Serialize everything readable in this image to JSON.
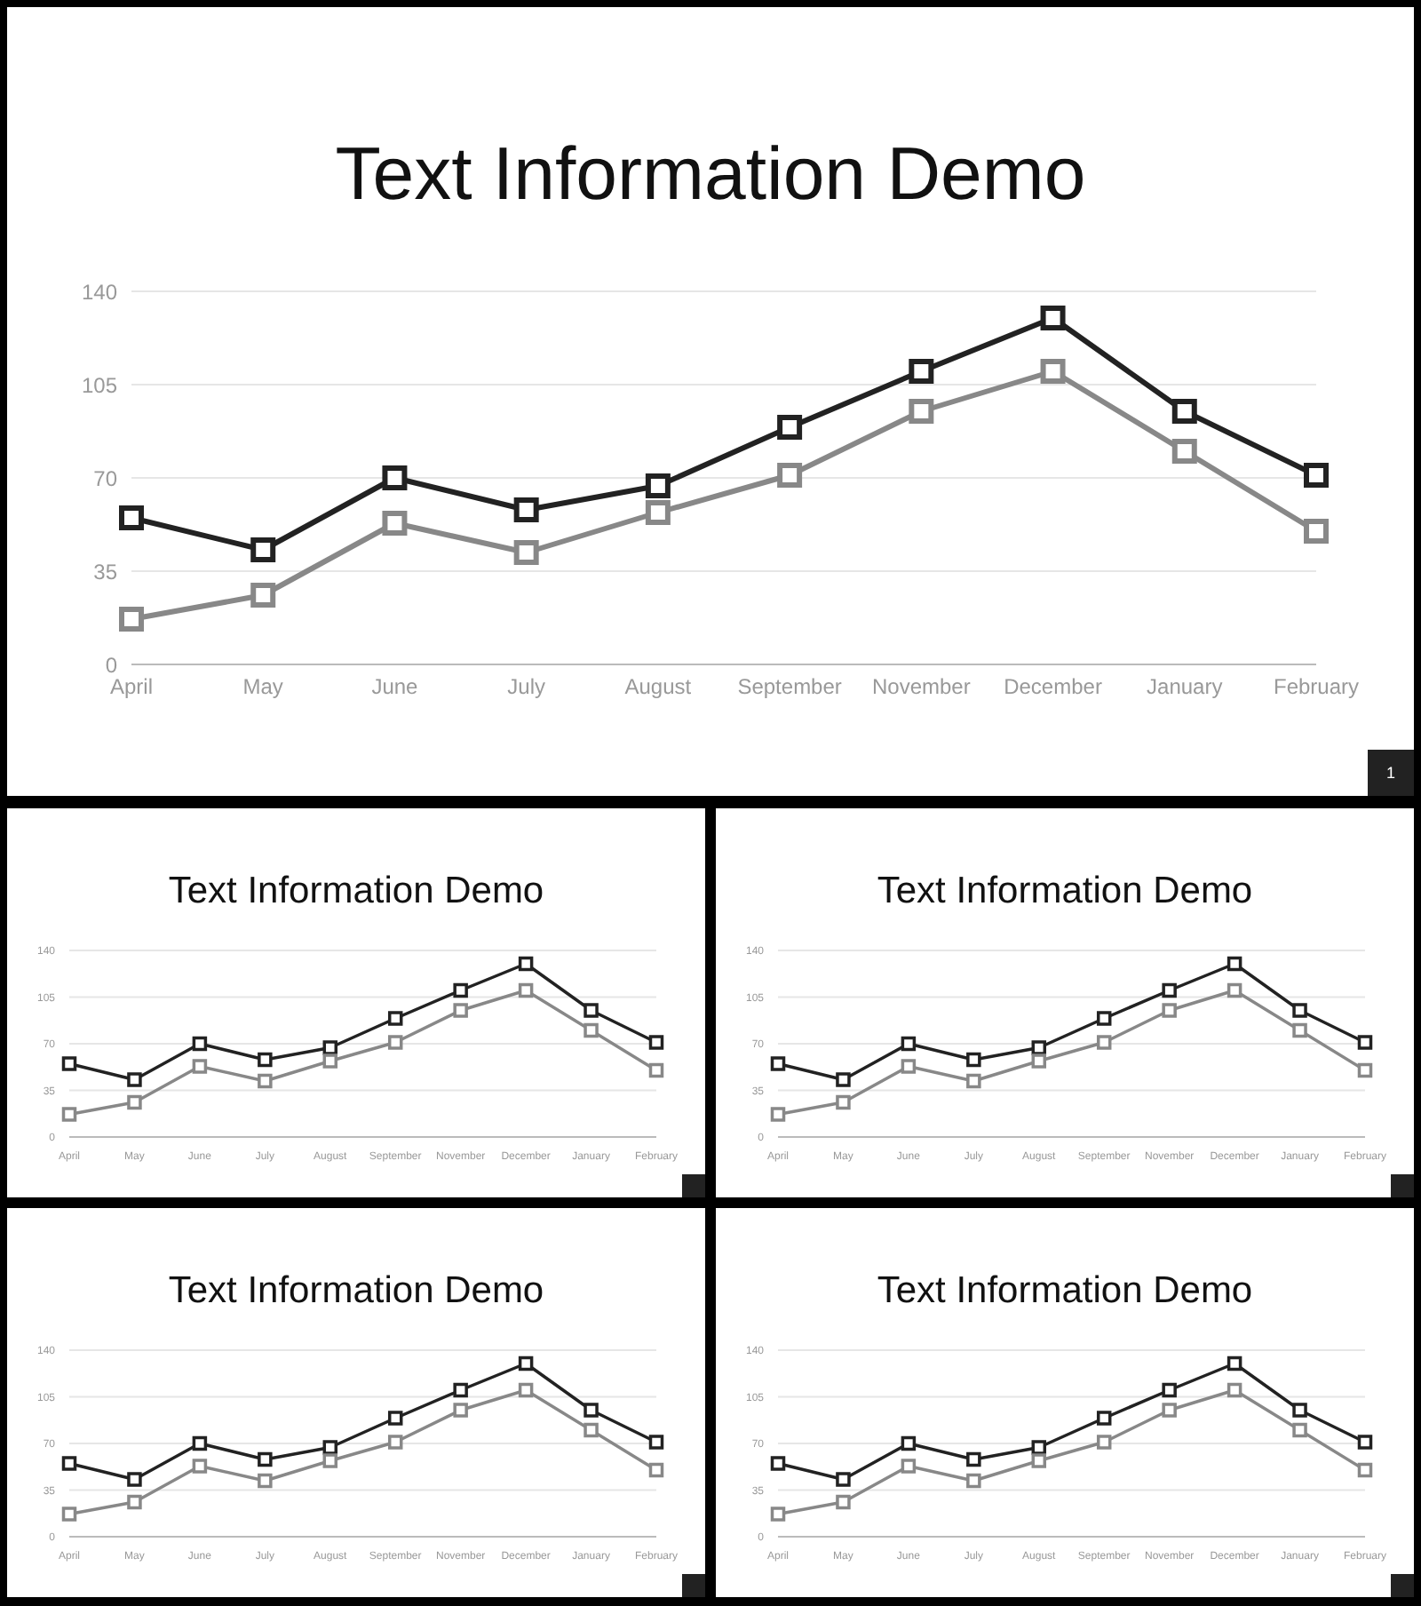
{
  "chart_data": [
    {
      "type": "line",
      "title": "Text Information Demo",
      "categories": [
        "April",
        "May",
        "June",
        "July",
        "August",
        "September",
        "November",
        "December",
        "January",
        "February"
      ],
      "series": [
        {
          "color": "#222222",
          "values": [
            55,
            43,
            70,
            58,
            67,
            89,
            110,
            130,
            95,
            71
          ]
        },
        {
          "color": "#888888",
          "values": [
            17,
            26,
            53,
            42,
            57,
            71,
            95,
            110,
            80,
            50
          ]
        }
      ],
      "ylim": [
        0,
        140
      ],
      "yticks": [
        0,
        35,
        70,
        105,
        140
      ],
      "grid": "y",
      "legend": false,
      "marker": "square",
      "line_style": "solid",
      "annotations": [
        "1"
      ]
    },
    {
      "type": "line",
      "title": "Text Information Demo",
      "categories": [
        "April",
        "May",
        "June",
        "July",
        "August",
        "September",
        "November",
        "December",
        "January",
        "February"
      ],
      "series": [
        {
          "color": "#222222",
          "values": [
            55,
            43,
            70,
            58,
            67,
            89,
            110,
            130,
            95,
            71
          ]
        },
        {
          "color": "#888888",
          "values": [
            17,
            26,
            53,
            42,
            57,
            71,
            95,
            110,
            80,
            50
          ]
        }
      ],
      "ylim": [
        0,
        140
      ],
      "yticks": [
        0,
        35,
        70,
        105,
        140
      ],
      "grid": "y",
      "legend": false,
      "marker": "square",
      "line_style": "solid"
    },
    {
      "type": "line",
      "title": "Text Information Demo",
      "categories": [
        "April",
        "May",
        "June",
        "July",
        "August",
        "September",
        "November",
        "December",
        "January",
        "February"
      ],
      "series": [
        {
          "color": "#222222",
          "values": [
            55,
            43,
            70,
            58,
            67,
            89,
            110,
            130,
            95,
            71
          ]
        },
        {
          "color": "#888888",
          "values": [
            17,
            26,
            53,
            42,
            57,
            71,
            95,
            110,
            80,
            50
          ]
        }
      ],
      "ylim": [
        0,
        140
      ],
      "yticks": [
        0,
        35,
        70,
        105,
        140
      ],
      "grid": "y",
      "legend": false,
      "marker": "square",
      "line_style": "solid"
    },
    {
      "type": "line",
      "title": "Text Information Demo",
      "categories": [
        "April",
        "May",
        "June",
        "July",
        "August",
        "September",
        "November",
        "December",
        "January",
        "February"
      ],
      "series": [
        {
          "color": "#222222",
          "values": [
            55,
            43,
            70,
            58,
            67,
            89,
            110,
            130,
            95,
            71
          ]
        },
        {
          "color": "#888888",
          "values": [
            17,
            26,
            53,
            42,
            57,
            71,
            95,
            110,
            80,
            50
          ]
        }
      ],
      "ylim": [
        0,
        140
      ],
      "yticks": [
        0,
        35,
        70,
        105,
        140
      ],
      "grid": "y",
      "legend": false,
      "marker": "square",
      "line_style": "solid"
    },
    {
      "type": "line",
      "title": "Text Information Demo",
      "categories": [
        "April",
        "May",
        "June",
        "July",
        "August",
        "September",
        "November",
        "December",
        "January",
        "February"
      ],
      "series": [
        {
          "color": "#222222",
          "values": [
            55,
            43,
            70,
            58,
            67,
            89,
            110,
            130,
            95,
            71
          ]
        },
        {
          "color": "#888888",
          "values": [
            17,
            26,
            53,
            42,
            57,
            71,
            95,
            110,
            80,
            50
          ]
        }
      ],
      "ylim": [
        0,
        140
      ],
      "yticks": [
        0,
        35,
        70,
        105,
        140
      ],
      "grid": "y",
      "legend": false,
      "marker": "square",
      "line_style": "solid"
    }
  ]
}
